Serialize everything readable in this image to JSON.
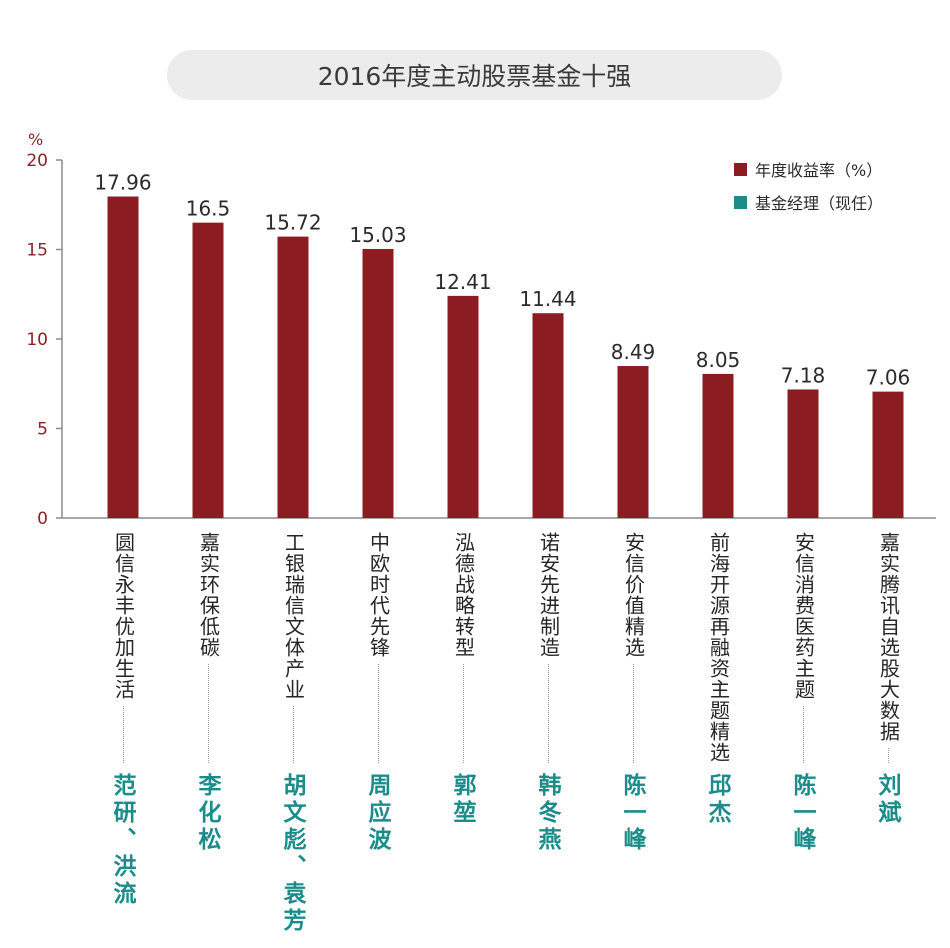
{
  "title": "2016年度主动股票基金十强",
  "chart_data": {
    "type": "bar",
    "y_unit": "%",
    "ylim": [
      0,
      20
    ],
    "yticks": [
      "0",
      "5",
      "10",
      "15",
      "20"
    ],
    "categories": [
      "圆信永丰优加生活",
      "嘉实环保低碳",
      "工银瑞信文体产业",
      "中欧时代先锋",
      "泓德战略转型",
      "诺安先进制造",
      "安信价值精选",
      "前海开源再融资主题精选",
      "安信消费医药主题",
      "嘉实腾讯自选股大数据"
    ],
    "series": [
      {
        "name": "年度收益率（%）",
        "color": "#8b1c21",
        "values": [
          17.96,
          16.5,
          15.72,
          15.03,
          12.41,
          11.44,
          8.49,
          8.05,
          7.18,
          7.06
        ]
      }
    ],
    "value_labels": [
      "17.96",
      "16.5",
      "15.72",
      "15.03",
      "12.41",
      "11.44",
      "8.49",
      "8.05",
      "7.18",
      "7.06"
    ],
    "managers": [
      "范研、洪流",
      "李化松",
      "胡文彪、袁芳",
      "周应波",
      "郭堃",
      "韩冬燕",
      "陈一峰",
      "邱杰",
      "陈一峰",
      "刘斌"
    ],
    "legend": {
      "position": "top-right",
      "items": [
        {
          "label": "年度收益率（%）",
          "color": "#8b1c21"
        },
        {
          "label": "基金经理（现任）",
          "color": "#1b8c8a"
        }
      ]
    },
    "grid": false
  }
}
